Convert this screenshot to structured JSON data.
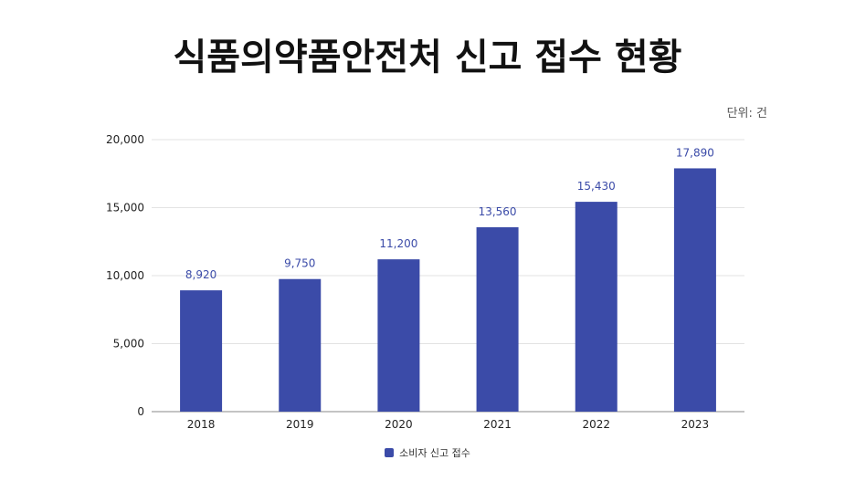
{
  "unit": "단위: 건",
  "colors": {
    "bar": "#3b4ba8",
    "value_label": "#3b4ba8",
    "grid": "#e3e3e3",
    "axis": "#888888",
    "tick_text": "#222222"
  },
  "chart_data": {
    "type": "bar",
    "title": "식품의약품안전처 신고 접수 현황",
    "categories": [
      "2018",
      "2019",
      "2020",
      "2021",
      "2022",
      "2023"
    ],
    "series": [
      {
        "name": "소비자 신고 접수",
        "values": [
          8920,
          9750,
          11200,
          13560,
          15430,
          17890
        ],
        "labels": [
          "8,920",
          "9,750",
          "11,200",
          "13,560",
          "15,430",
          "17,890"
        ]
      }
    ],
    "yticks": [
      "0",
      "5,000",
      "10,000",
      "15,000",
      "20,000"
    ],
    "ylim": [
      0,
      20000
    ],
    "xlabel": "",
    "ylabel": "",
    "grid": true,
    "legend": "bottom-center"
  }
}
